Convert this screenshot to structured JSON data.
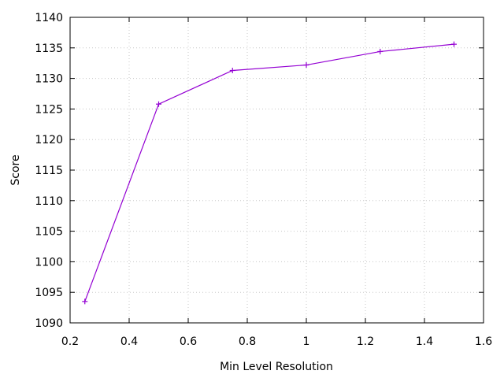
{
  "chart_data": {
    "type": "line",
    "title": "",
    "xlabel": "Min Level Resolution",
    "ylabel": "Score",
    "xlim": [
      0.2,
      1.6
    ],
    "ylim": [
      1090,
      1140
    ],
    "x_ticks": [
      0.2,
      0.4,
      0.6,
      0.8,
      1,
      1.2,
      1.4,
      1.6
    ],
    "x_tick_labels": [
      "0.2",
      "0.4",
      "0.6",
      "0.8",
      "1",
      "1.2",
      "1.4",
      "1.6"
    ],
    "y_ticks": [
      1090,
      1095,
      1100,
      1105,
      1110,
      1115,
      1120,
      1125,
      1130,
      1135,
      1140
    ],
    "y_tick_labels": [
      "1090",
      "1095",
      "1100",
      "1105",
      "1110",
      "1115",
      "1120",
      "1125",
      "1130",
      "1135",
      "1140"
    ],
    "grid": true,
    "legend": "none",
    "series": [
      {
        "color": "#9400d3",
        "marker": "plus",
        "x": [
          0.25,
          0.5,
          0.75,
          1.0,
          1.25,
          1.5
        ],
        "y": [
          1093.5,
          1125.8,
          1131.3,
          1132.2,
          1134.4,
          1135.6
        ]
      }
    ]
  }
}
